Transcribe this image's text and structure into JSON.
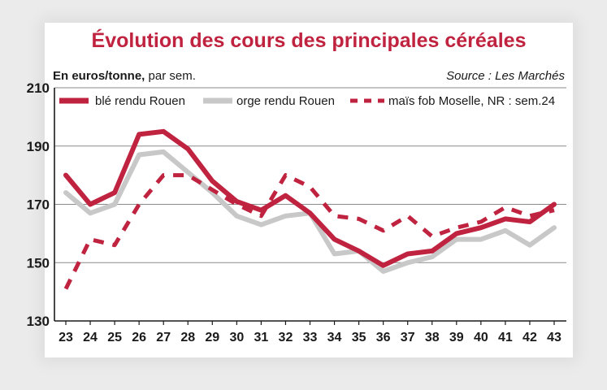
{
  "chart_data": {
    "type": "line",
    "title": "Évolution des cours des principales céréales",
    "subtitle_bold": "En euros/tonne,",
    "subtitle_rest": " par sem.",
    "source": "Source : Les Marchés",
    "ylim": [
      130,
      210
    ],
    "yticks": [
      130,
      150,
      170,
      190,
      210
    ],
    "grid": true,
    "legend_position": "top",
    "x": [
      "23",
      "24",
      "25",
      "26",
      "27",
      "28",
      "29",
      "30",
      "31",
      "32",
      "33",
      "34",
      "35",
      "36",
      "37",
      "38",
      "39",
      "40",
      "41",
      "42",
      "43"
    ],
    "series": [
      {
        "name": "blé rendu Rouen",
        "color": "#c0233f",
        "style": "solid",
        "values": [
          180,
          170,
          174,
          194,
          195,
          189,
          178,
          171,
          168,
          173,
          167,
          158,
          154,
          149,
          153,
          154,
          160,
          162,
          165,
          164,
          170
        ]
      },
      {
        "name": "orge rendu Rouen",
        "color": "#c8c8c8",
        "style": "solid",
        "values": [
          174,
          167,
          170,
          187,
          188,
          181,
          174,
          166,
          163,
          166,
          167,
          153,
          154,
          147,
          150,
          152,
          158,
          158,
          161,
          156,
          162
        ]
      },
      {
        "name": "maïs fob Moselle, NR : sem.24",
        "color": "#c0233f",
        "style": "dashed",
        "values": [
          141,
          158,
          156,
          170,
          180,
          180,
          175,
          170,
          166,
          180,
          176,
          166,
          165,
          161,
          166,
          159,
          162,
          164,
          169,
          166,
          168
        ]
      }
    ]
  }
}
